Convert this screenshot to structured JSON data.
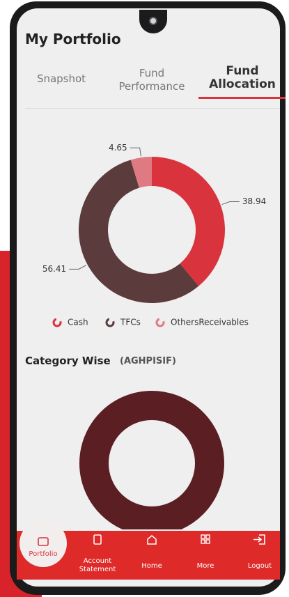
{
  "header": {
    "title": "My Portfolio"
  },
  "tabs": [
    "Snapshot",
    "Fund Performance",
    "Fund Allocation"
  ],
  "chart_data": {
    "type": "donut",
    "categories": [
      "Cash",
      "TFCs",
      "OthersReceivables"
    ],
    "values": [
      38.94,
      56.41,
      4.65
    ],
    "colors": [
      "#d9333d",
      "#5b3b3b",
      "#e07a82"
    ]
  },
  "section": {
    "title": "Category Wise",
    "subtitle": "(AGHPISIF)"
  },
  "nav": [
    "Portfolio",
    "Account Statement",
    "Home",
    "More",
    "Logout"
  ]
}
